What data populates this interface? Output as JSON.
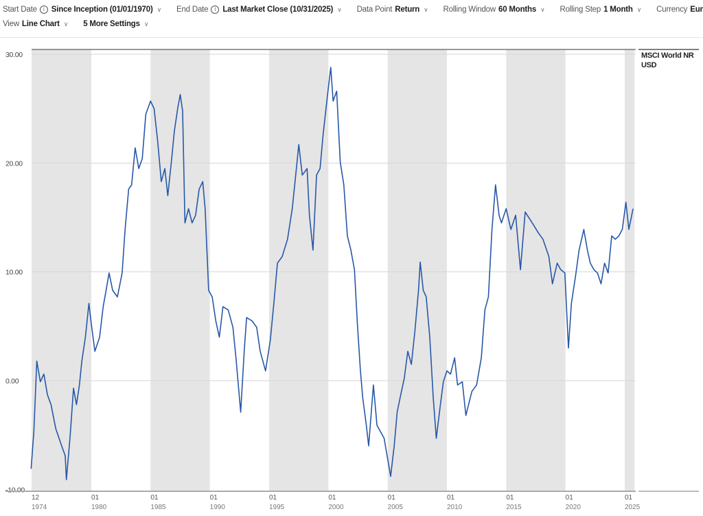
{
  "toolbar": {
    "start_date": {
      "label": "Start Date",
      "value": "Since Inception (01/01/1970)"
    },
    "end_date": {
      "label": "End Date",
      "value": "Last Market Close (10/31/2025)"
    },
    "data_point": {
      "label": "Data Point",
      "value": "Return"
    },
    "rolling_window": {
      "label": "Rolling Window",
      "value": "60 Months"
    },
    "rolling_step": {
      "label": "Rolling Step",
      "value": "1 Month"
    },
    "currency": {
      "label": "Currency",
      "value": "Euro"
    },
    "view": {
      "label": "View",
      "value": "Line Chart"
    },
    "more_settings": "5 More Settings"
  },
  "chart_data": {
    "type": "line",
    "title": "",
    "xlabel": "",
    "ylabel": "",
    "ylim": [
      -10,
      30
    ],
    "xlim": [
      1974.92,
      2025.83
    ],
    "yticks": [
      {
        "v": 30,
        "label": "30.00"
      },
      {
        "v": 20,
        "label": "20.00"
      },
      {
        "v": 10,
        "label": "10.00"
      },
      {
        "v": 0,
        "label": "0.00"
      },
      {
        "v": -10,
        "label": "-10.00"
      }
    ],
    "xticks": [
      {
        "v": 1974.92,
        "month": "12",
        "year": "1974"
      },
      {
        "v": 1980,
        "month": "01",
        "year": "1980"
      },
      {
        "v": 1985,
        "month": "01",
        "year": "1985"
      },
      {
        "v": 1990,
        "month": "01",
        "year": "1990"
      },
      {
        "v": 1995,
        "month": "01",
        "year": "1995"
      },
      {
        "v": 2000,
        "month": "01",
        "year": "2000"
      },
      {
        "v": 2005,
        "month": "01",
        "year": "2005"
      },
      {
        "v": 2010,
        "month": "01",
        "year": "2010"
      },
      {
        "v": 2015,
        "month": "01",
        "year": "2015"
      },
      {
        "v": 2020,
        "month": "01",
        "year": "2020"
      },
      {
        "v": 2025,
        "month": "01",
        "year": "2025"
      }
    ],
    "shaded_bands": [
      [
        1974.92,
        1980
      ],
      [
        1985,
        1990
      ],
      [
        1995,
        2000
      ],
      [
        2005,
        2010
      ],
      [
        2015,
        2020
      ],
      [
        2025,
        2025.83
      ]
    ],
    "band_color": "#e5e5e5",
    "series": [
      {
        "name": "MSCI World NR USD",
        "color": "#2757a8",
        "points": [
          [
            1974.92,
            -8.1
          ],
          [
            1975.15,
            -4.7
          ],
          [
            1975.4,
            1.8
          ],
          [
            1975.7,
            -0.1
          ],
          [
            1976,
            0.6
          ],
          [
            1976.3,
            -1.3
          ],
          [
            1976.6,
            -2.2
          ],
          [
            1977,
            -4.4
          ],
          [
            1977.5,
            -6
          ],
          [
            1977.8,
            -6.9
          ],
          [
            1977.9,
            -9.1
          ],
          [
            1978.2,
            -5.3
          ],
          [
            1978.5,
            -0.7
          ],
          [
            1978.75,
            -2.2
          ],
          [
            1979,
            -0.4
          ],
          [
            1979.2,
            1.8
          ],
          [
            1979.5,
            4
          ],
          [
            1979.8,
            7.1
          ],
          [
            1980,
            5.2
          ],
          [
            1980.3,
            2.7
          ],
          [
            1980.7,
            4
          ],
          [
            1981,
            6.8
          ],
          [
            1981.2,
            8
          ],
          [
            1981.5,
            9.9
          ],
          [
            1981.8,
            8.3
          ],
          [
            1982.2,
            7.7
          ],
          [
            1982.6,
            9.9
          ],
          [
            1982.85,
            13.9
          ],
          [
            1983.15,
            17.6
          ],
          [
            1983.4,
            18
          ],
          [
            1983.7,
            21.4
          ],
          [
            1984,
            19.5
          ],
          [
            1984.3,
            20.4
          ],
          [
            1984.6,
            24.5
          ],
          [
            1985,
            25.7
          ],
          [
            1985.3,
            25
          ],
          [
            1985.6,
            22
          ],
          [
            1985.9,
            18.3
          ],
          [
            1986.2,
            19.5
          ],
          [
            1986.45,
            17
          ],
          [
            1986.75,
            20.1
          ],
          [
            1987,
            22.9
          ],
          [
            1987.3,
            25.1
          ],
          [
            1987.5,
            26.3
          ],
          [
            1987.7,
            24.8
          ],
          [
            1987.9,
            14.5
          ],
          [
            1988.2,
            15.8
          ],
          [
            1988.5,
            14.5
          ],
          [
            1988.8,
            15.2
          ],
          [
            1989.1,
            17.6
          ],
          [
            1989.4,
            18.3
          ],
          [
            1989.6,
            15.8
          ],
          [
            1989.9,
            8.3
          ],
          [
            1990.2,
            7.7
          ],
          [
            1990.5,
            5.5
          ],
          [
            1990.8,
            4
          ],
          [
            1991.1,
            6.8
          ],
          [
            1991.55,
            6.5
          ],
          [
            1991.95,
            4.9
          ],
          [
            1992.2,
            2.1
          ],
          [
            1992.6,
            -2.9
          ],
          [
            1992.9,
            2.7
          ],
          [
            1993.1,
            5.8
          ],
          [
            1993.55,
            5.5
          ],
          [
            1993.95,
            4.9
          ],
          [
            1994.25,
            2.7
          ],
          [
            1994.7,
            0.9
          ],
          [
            1995.1,
            3.7
          ],
          [
            1995.4,
            7.1
          ],
          [
            1995.7,
            10.8
          ],
          [
            1996.1,
            11.4
          ],
          [
            1996.55,
            13
          ],
          [
            1996.95,
            15.8
          ],
          [
            1997.3,
            19.5
          ],
          [
            1997.5,
            21.7
          ],
          [
            1997.8,
            18.9
          ],
          [
            1998.2,
            19.5
          ],
          [
            1998.4,
            15.2
          ],
          [
            1998.7,
            12
          ],
          [
            1999,
            18.9
          ],
          [
            1999.3,
            19.5
          ],
          [
            1999.55,
            22.6
          ],
          [
            1999.9,
            26
          ],
          [
            2000.2,
            28.8
          ],
          [
            2000.4,
            25.7
          ],
          [
            2000.7,
            26.6
          ],
          [
            2001,
            20.1
          ],
          [
            2001.3,
            18
          ],
          [
            2001.6,
            13.3
          ],
          [
            2001.9,
            12
          ],
          [
            2002.2,
            10.2
          ],
          [
            2002.45,
            5.2
          ],
          [
            2002.7,
            0.9
          ],
          [
            2002.9,
            -1.6
          ],
          [
            2003.2,
            -4.1
          ],
          [
            2003.4,
            -6
          ],
          [
            2003.8,
            -0.4
          ],
          [
            2004.1,
            -4.1
          ],
          [
            2004.4,
            -4.7
          ],
          [
            2004.7,
            -5.3
          ],
          [
            2005,
            -7.2
          ],
          [
            2005.25,
            -8.8
          ],
          [
            2005.55,
            -6
          ],
          [
            2005.8,
            -2.9
          ],
          [
            2006.1,
            -1.3
          ],
          [
            2006.4,
            0.2
          ],
          [
            2006.7,
            2.7
          ],
          [
            2007,
            1.5
          ],
          [
            2007.3,
            4.6
          ],
          [
            2007.6,
            8.3
          ],
          [
            2007.75,
            10.9
          ],
          [
            2008,
            8.3
          ],
          [
            2008.25,
            7.7
          ],
          [
            2008.55,
            4
          ],
          [
            2008.85,
            -1.6
          ],
          [
            2009.1,
            -5.3
          ],
          [
            2009.45,
            -2.2
          ],
          [
            2009.7,
            -0.1
          ],
          [
            2010,
            0.9
          ],
          [
            2010.3,
            0.6
          ],
          [
            2010.65,
            2.1
          ],
          [
            2010.9,
            -0.4
          ],
          [
            2011.3,
            -0.1
          ],
          [
            2011.6,
            -3.2
          ],
          [
            2012.1,
            -1
          ],
          [
            2012.5,
            -0.4
          ],
          [
            2012.9,
            2.1
          ],
          [
            2013.2,
            6.5
          ],
          [
            2013.5,
            7.7
          ],
          [
            2013.8,
            13.9
          ],
          [
            2014.1,
            18
          ],
          [
            2014.4,
            15.2
          ],
          [
            2014.6,
            14.5
          ],
          [
            2015,
            15.8
          ],
          [
            2015.4,
            13.9
          ],
          [
            2015.8,
            15.2
          ],
          [
            2016.2,
            10.2
          ],
          [
            2016.6,
            15.5
          ],
          [
            2017.2,
            14.5
          ],
          [
            2017.7,
            13.6
          ],
          [
            2018.1,
            13
          ],
          [
            2018.6,
            11.4
          ],
          [
            2018.9,
            8.9
          ],
          [
            2019.3,
            10.8
          ],
          [
            2019.6,
            10.2
          ],
          [
            2019.95,
            9.9
          ],
          [
            2020.25,
            3
          ],
          [
            2020.5,
            7.1
          ],
          [
            2020.85,
            9.6
          ],
          [
            2021.15,
            12
          ],
          [
            2021.55,
            13.9
          ],
          [
            2021.85,
            12
          ],
          [
            2022.1,
            10.8
          ],
          [
            2022.4,
            10.2
          ],
          [
            2022.7,
            9.9
          ],
          [
            2023,
            8.9
          ],
          [
            2023.3,
            10.8
          ],
          [
            2023.6,
            9.9
          ],
          [
            2023.9,
            13.3
          ],
          [
            2024.2,
            13
          ],
          [
            2024.5,
            13.3
          ],
          [
            2024.8,
            13.9
          ],
          [
            2025.1,
            16.4
          ],
          [
            2025.35,
            13.9
          ],
          [
            2025.7,
            15.8
          ]
        ]
      }
    ],
    "legend": "right",
    "grid": true
  }
}
